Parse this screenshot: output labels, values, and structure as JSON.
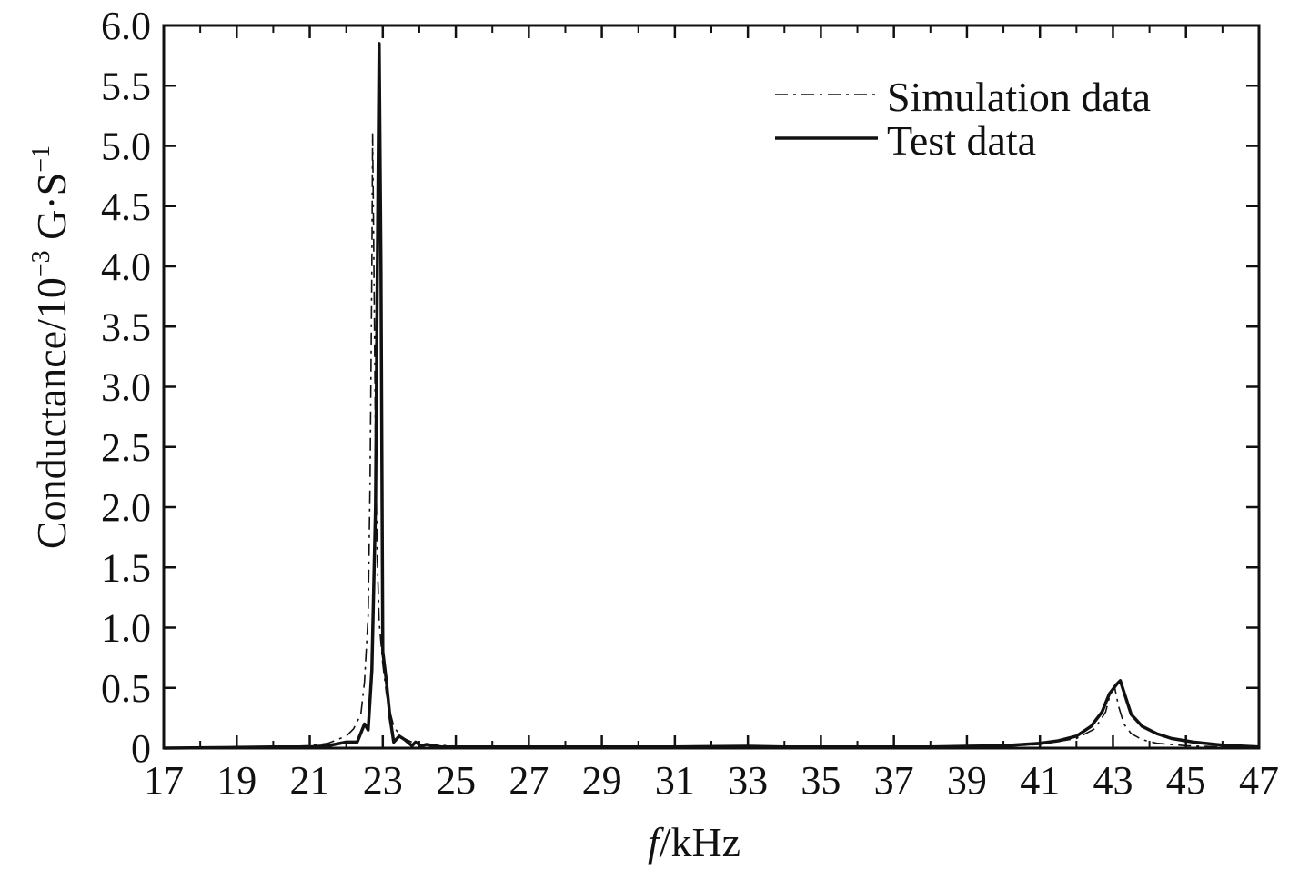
{
  "chart_data": {
    "type": "line",
    "title": "",
    "xlabel": {
      "var": "f",
      "unit": "/kHz"
    },
    "ylabel": {
      "base": "Conductance/10",
      "exp1": "−3",
      "mid": " G·S",
      "exp2": "−1"
    },
    "xlim": [
      17,
      47
    ],
    "ylim": [
      0,
      6
    ],
    "xticks": [
      "17",
      "19",
      "21",
      "23",
      "25",
      "27",
      "29",
      "31",
      "33",
      "35",
      "37",
      "39",
      "41",
      "43",
      "45",
      "47"
    ],
    "yticks": [
      "0",
      "0.5",
      "1.0",
      "1.5",
      "2.0",
      "2.5",
      "3.0",
      "3.5",
      "4.0",
      "4.5",
      "5.0",
      "5.5",
      "6.0"
    ],
    "grid": false,
    "legend_position": "top-right",
    "series": [
      {
        "name": "Simulation data",
        "style": "dash-dot",
        "x": [
          17,
          19,
          20,
          21,
          21.5,
          22,
          22.2,
          22.4,
          22.5,
          22.6,
          22.65,
          22.7,
          22.72,
          22.75,
          22.8,
          22.85,
          22.9,
          23.0,
          23.1,
          23.2,
          23.3,
          23.5,
          23.8,
          24.2,
          25,
          27,
          30,
          33,
          36,
          38,
          40,
          41,
          42,
          42.5,
          42.8,
          42.95,
          43.05,
          43.15,
          43.3,
          43.5,
          43.8,
          44.2,
          45,
          46,
          47
        ],
        "y": [
          0.0,
          0.005,
          0.01,
          0.02,
          0.04,
          0.1,
          0.16,
          0.28,
          0.55,
          1.1,
          2.2,
          4.0,
          5.1,
          4.2,
          2.5,
          1.55,
          1.05,
          0.7,
          0.45,
          0.3,
          0.18,
          0.09,
          0.05,
          0.03,
          0.015,
          0.008,
          0.005,
          0.005,
          0.005,
          0.008,
          0.015,
          0.03,
          0.08,
          0.16,
          0.3,
          0.48,
          0.5,
          0.35,
          0.2,
          0.12,
          0.07,
          0.04,
          0.02,
          0.01,
          0.005
        ]
      },
      {
        "name": "Test data",
        "style": "solid",
        "x": [
          17,
          19,
          20,
          21,
          21.5,
          22,
          22.3,
          22.5,
          22.6,
          22.7,
          22.8,
          22.85,
          22.9,
          22.95,
          23.0,
          23.1,
          23.2,
          23.3,
          23.45,
          23.6,
          23.8,
          23.9,
          24.05,
          24.2,
          24.4,
          24.6,
          25,
          27,
          29.5,
          31,
          33,
          34,
          36,
          38,
          39,
          40,
          41,
          41.5,
          42,
          42.4,
          42.7,
          42.9,
          43.1,
          43.2,
          43.35,
          43.5,
          43.8,
          44.2,
          44.6,
          45.2,
          46,
          47
        ],
        "y": [
          0.0,
          0.005,
          0.01,
          0.01,
          0.02,
          0.05,
          0.05,
          0.2,
          0.15,
          0.65,
          2.0,
          4.0,
          5.85,
          4.0,
          0.8,
          0.55,
          0.25,
          0.05,
          0.1,
          0.07,
          0.02,
          0.05,
          0.02,
          0.03,
          0.02,
          0.01,
          0.01,
          0.01,
          0.01,
          0.01,
          0.015,
          0.01,
          0.01,
          0.01,
          0.015,
          0.02,
          0.04,
          0.06,
          0.1,
          0.18,
          0.3,
          0.45,
          0.53,
          0.56,
          0.42,
          0.28,
          0.18,
          0.12,
          0.08,
          0.05,
          0.025,
          0.01
        ]
      }
    ]
  }
}
